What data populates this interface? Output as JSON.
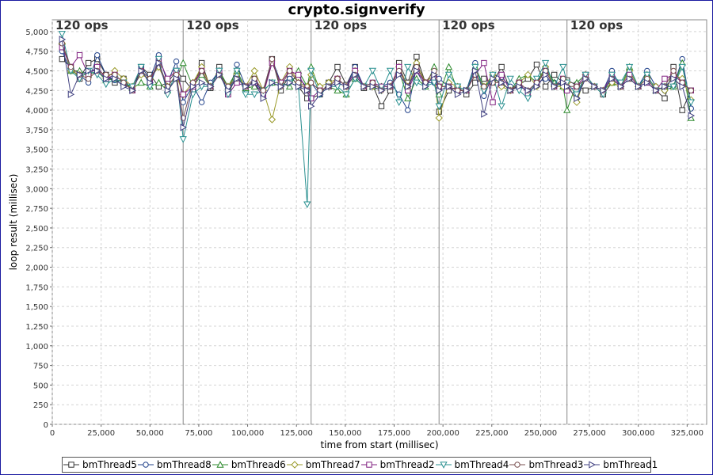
{
  "chart_data": {
    "type": "line",
    "title": "crypto.signverify",
    "xlabel": "time from start (millisec)",
    "ylabel": "loop result (millisec)",
    "xlim": [
      0,
      335000
    ],
    "ylim": [
      0,
      5150
    ],
    "x_ticks": [
      "0",
      "25,000",
      "50,000",
      "75,000",
      "100,000",
      "125,000",
      "150,000",
      "175,000",
      "200,000",
      "225,000",
      "250,000",
      "275,000",
      "300,000",
      "325,000"
    ],
    "y_ticks": [
      "0",
      "250",
      "500",
      "750",
      "1,000",
      "1,250",
      "1,500",
      "1,750",
      "2,000",
      "2,250",
      "2,500",
      "2,750",
      "3,000",
      "3,250",
      "3,500",
      "3,750",
      "4,000",
      "4,250",
      "4,500",
      "4,750",
      "5,000"
    ],
    "phase_markers": [
      {
        "x": 0,
        "label": "120 ops"
      },
      {
        "x": 67000,
        "label": "120 ops"
      },
      {
        "x": 132500,
        "label": "120 ops"
      },
      {
        "x": 198000,
        "label": "120 ops"
      },
      {
        "x": 263500,
        "label": "120 ops"
      }
    ],
    "x": [
      5000,
      9500,
      14000,
      18500,
      23000,
      27500,
      32000,
      36500,
      41000,
      45500,
      50000,
      54500,
      59000,
      63500,
      67000,
      72000,
      76500,
      81000,
      85500,
      90000,
      94500,
      99000,
      103500,
      108000,
      112500,
      117000,
      121500,
      126000,
      130500,
      132500,
      137000,
      141500,
      146000,
      150500,
      155000,
      159500,
      164000,
      168500,
      173000,
      177500,
      182000,
      186500,
      191000,
      195500,
      198000,
      203000,
      207500,
      212000,
      216500,
      221000,
      225500,
      230000,
      234500,
      239000,
      243500,
      248000,
      252500,
      257000,
      261500,
      263500,
      268500,
      273000,
      277500,
      282000,
      286500,
      291000,
      295500,
      300000,
      304500,
      309000,
      313500,
      318000,
      322500,
      327000
    ],
    "series": [
      {
        "name": "bmThread5",
        "color": "#333333",
        "marker": "square",
        "values": [
          4650,
          4550,
          4400,
          4600,
          4650,
          4450,
          4350,
          4400,
          4250,
          4550,
          4450,
          4300,
          4350,
          4500,
          4400,
          4250,
          4600,
          4280,
          4550,
          4200,
          4450,
          4250,
          4400,
          4200,
          4650,
          4250,
          4450,
          4300,
          4150,
          4150,
          4200,
          4350,
          4550,
          4320,
          4550,
          4280,
          4320,
          4050,
          4250,
          4600,
          4350,
          4680,
          4350,
          4400,
          3980,
          4250,
          4300,
          4200,
          4350,
          4400,
          4350,
          4550,
          4250,
          4320,
          4400,
          4580,
          4300,
          4450,
          4350,
          4380,
          4320,
          4250,
          4300,
          4200,
          4350,
          4300,
          4400,
          4300,
          4350,
          4250,
          4150,
          4550,
          4000,
          4250
        ]
      },
      {
        "name": "bmThread8",
        "color": "#20418a",
        "marker": "circle",
        "values": [
          4750,
          4500,
          4450,
          4350,
          4700,
          4450,
          4380,
          4320,
          4300,
          4550,
          4400,
          4700,
          4350,
          4620,
          4100,
          4320,
          4100,
          4350,
          4500,
          4200,
          4580,
          4300,
          4350,
          4250,
          4650,
          4350,
          4400,
          4400,
          4300,
          4350,
          4200,
          4300,
          4350,
          4300,
          4550,
          4300,
          4350,
          4300,
          4350,
          4200,
          4000,
          4550,
          4350,
          4350,
          4400,
          4300,
          4250,
          4250,
          4600,
          4180,
          4450,
          4420,
          4300,
          4300,
          4250,
          4350,
          4400,
          4350,
          4330,
          4300,
          4150,
          4450,
          4300,
          4250,
          4500,
          4300,
          4500,
          4300,
          4500,
          4300,
          4250,
          4300,
          4650,
          4020
        ]
      },
      {
        "name": "bmThread6",
        "color": "#2d8a2d",
        "marker": "triangle-up",
        "values": [
          4870,
          4500,
          4500,
          4450,
          4500,
          4380,
          4400,
          4350,
          4280,
          4350,
          4300,
          4350,
          4250,
          4400,
          4600,
          4300,
          4450,
          4300,
          4500,
          4300,
          4500,
          4280,
          4300,
          4250,
          4350,
          4350,
          4300,
          4500,
          4300,
          4550,
          4250,
          4300,
          4250,
          4200,
          4400,
          4300,
          4300,
          4300,
          4300,
          4500,
          4150,
          4400,
          4300,
          4550,
          4200,
          4550,
          4250,
          4250,
          4550,
          4300,
          4400,
          4350,
          4250,
          4400,
          4450,
          4350,
          4550,
          4350,
          4300,
          4000,
          4350,
          4450,
          4300,
          4250,
          4350,
          4300,
          4550,
          4300,
          4450,
          4250,
          4300,
          4300,
          4600,
          3900
        ]
      },
      {
        "name": "bmThread7",
        "color": "#9a9a2a",
        "marker": "diamond",
        "values": [
          4850,
          4500,
          4450,
          4450,
          4550,
          4400,
          4500,
          4400,
          4300,
          4450,
          4400,
          4550,
          4300,
          4450,
          4200,
          4350,
          4550,
          4300,
          4450,
          4300,
          4450,
          4300,
          4500,
          4250,
          3880,
          4350,
          4550,
          4350,
          4300,
          4450,
          4300,
          4350,
          4400,
          4300,
          4500,
          4300,
          4300,
          4250,
          4300,
          4550,
          4300,
          4600,
          4350,
          4450,
          3900,
          4350,
          4300,
          4250,
          4450,
          4300,
          4450,
          4300,
          4250,
          4350,
          4450,
          4300,
          4550,
          4300,
          4300,
          4350,
          4100,
          4450,
          4300,
          4250,
          4350,
          4300,
          4500,
          4300,
          4400,
          4300,
          4250,
          4450,
          4400,
          4130
        ]
      },
      {
        "name": "bmThread2",
        "color": "#802080",
        "marker": "square",
        "values": [
          4800,
          4550,
          4700,
          4450,
          4550,
          4400,
          4450,
          4350,
          4250,
          4500,
          4350,
          4650,
          4400,
          4500,
          4200,
          4300,
          4500,
          4300,
          4500,
          4200,
          4350,
          4300,
          4350,
          4200,
          4600,
          4350,
          4500,
          4450,
          4250,
          4150,
          4250,
          4300,
          4400,
          4300,
          4500,
          4300,
          4350,
          4300,
          4300,
          4550,
          4250,
          4500,
          4350,
          4400,
          4300,
          4300,
          4250,
          4250,
          4450,
          4600,
          4100,
          4450,
          4250,
          4350,
          4200,
          4350,
          4500,
          4300,
          4400,
          4250,
          4300,
          4450,
          4300,
          4250,
          4450,
          4300,
          4450,
          4300,
          4350,
          4250,
          4400,
          4450,
          4350,
          4250
        ]
      },
      {
        "name": "bmThread4",
        "color": "#2a9090",
        "marker": "triangle-down",
        "values": [
          4970,
          4500,
          4400,
          4500,
          4450,
          4330,
          4400,
          4350,
          4300,
          4550,
          4300,
          4650,
          4200,
          4500,
          3630,
          4200,
          4300,
          4300,
          4500,
          4200,
          4500,
          4200,
          4200,
          4250,
          4350,
          4300,
          4350,
          4300,
          2800,
          4500,
          4200,
          4300,
          4300,
          4200,
          4400,
          4300,
          4500,
          4250,
          4500,
          4100,
          4550,
          4350,
          4300,
          4350,
          4050,
          4450,
          4300,
          4250,
          4550,
          4250,
          4450,
          4050,
          4400,
          4250,
          4150,
          4400,
          4600,
          4300,
          4550,
          4350,
          4200,
          4450,
          4300,
          4200,
          4450,
          4350,
          4550,
          4300,
          4450,
          4250,
          4300,
          4300,
          4550,
          4100
        ]
      },
      {
        "name": "bmThread3",
        "color": "#7a5050",
        "marker": "circle",
        "values": [
          4850,
          4550,
          4450,
          4400,
          4500,
          4450,
          4450,
          4350,
          4250,
          4500,
          4400,
          4600,
          4300,
          4450,
          3900,
          4350,
          4500,
          4300,
          4450,
          4300,
          4400,
          4300,
          4400,
          4250,
          4650,
          4300,
          4500,
          4350,
          4250,
          4350,
          4250,
          4300,
          4400,
          4300,
          4450,
          4300,
          4350,
          4250,
          4300,
          4500,
          4300,
          4550,
          4350,
          4500,
          4300,
          4300,
          4250,
          4250,
          4450,
          4300,
          4350,
          4350,
          4250,
          4350,
          4250,
          4350,
          4500,
          4300,
          4400,
          4300,
          4300,
          4400,
          4300,
          4250,
          4400,
          4300,
          4400,
          4300,
          4400,
          4250,
          4300,
          4500,
          4350,
          4250
        ]
      },
      {
        "name": "bmThread1",
        "color": "#404080",
        "marker": "triangle-right",
        "values": [
          4900,
          4200,
          4450,
          4500,
          4500,
          4400,
          4400,
          4300,
          4250,
          4500,
          4350,
          4600,
          4250,
          4400,
          3780,
          4300,
          4350,
          4300,
          4450,
          4250,
          4400,
          4300,
          4350,
          4150,
          4350,
          4300,
          4350,
          4300,
          4250,
          4050,
          4200,
          4300,
          4350,
          4300,
          4450,
          4300,
          4300,
          4250,
          4300,
          4450,
          4300,
          4500,
          4300,
          4450,
          4250,
          4300,
          4200,
          4250,
          4500,
          3950,
          4400,
          4350,
          4250,
          4300,
          4250,
          4300,
          4450,
          4300,
          4350,
          4300,
          4150,
          4400,
          4300,
          4250,
          4400,
          4300,
          4400,
          4300,
          4350,
          4250,
          4300,
          4400,
          4300,
          3930
        ]
      }
    ]
  }
}
